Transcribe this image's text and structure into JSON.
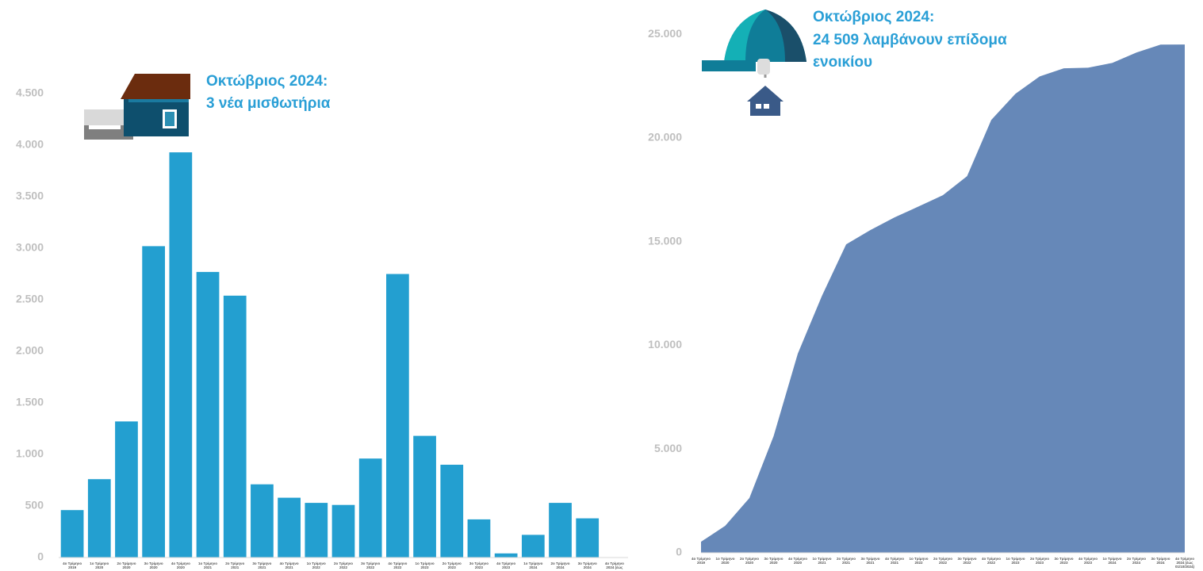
{
  "chart_data": [
    {
      "type": "bar",
      "color": "#239fd0",
      "annotations": [
        "Οκτώβριος 2024:",
        "3 νέα μισθωτήρια"
      ],
      "categories": [
        "4ο Τρίμηνο 2019",
        "1ο Τρίμηνο 2020",
        "2ο Τρίμηνο 2020",
        "3ο Τρίμηνο 2020",
        "4ο Τρίμηνο 2020",
        "1ο Τρίμηνο 2021",
        "2ο Τρίμηνο 2021",
        "3ο Τρίμηνο 2021",
        "4ο Τρίμηνο 2021",
        "1ο Τρίμηνο 2022",
        "2ο Τρίμηνο 2022",
        "3ο Τρίμηνο 2022",
        "4ο Τρίμηνο 2022",
        "1ο Τρίμηνο 2023",
        "2ο Τρίμηνο 2023",
        "3ο Τρίμηνο 2023",
        "4ο Τρίμηνο 2023",
        "1ο Τρίμηνο 2024",
        "2ο Τρίμηνο 2024",
        "3ο Τρίμηνο 2024",
        "4ο Τρίμηνο 2024 (έως"
      ],
      "values": [
        460,
        760,
        1320,
        3020,
        3930,
        2770,
        2540,
        710,
        580,
        530,
        510,
        960,
        2750,
        1180,
        900,
        370,
        40,
        220,
        530,
        380,
        3
      ],
      "ylim": [
        0,
        5000
      ],
      "yticks": [
        0,
        500,
        {
          "value": 1000,
          "label": "1.000"
        },
        {
          "value": 1500,
          "label": "1.500"
        },
        {
          "value": 2000,
          "label": "2.000"
        },
        {
          "value": 2500,
          "label": "2.500"
        },
        {
          "value": 3000,
          "label": "3.000"
        },
        {
          "value": 3500,
          "label": "3.500"
        },
        {
          "value": 4000,
          "label": "4.000"
        },
        {
          "value": 4500,
          "label": "4.500"
        }
      ]
    },
    {
      "type": "area",
      "color": "#6688b8",
      "annotations": [
        "Οκτώβριος 2024:",
        "24 509 λαμβάνουν επίδομα",
        "ενοικίου"
      ],
      "categories": [
        "4ο Τρίμηνο 2019",
        "1ο Τρίμηνο 2020",
        "2ο Τρίμηνο 2020",
        "3ο Τρίμηνο 2020",
        "4ο Τρίμηνο 2020",
        "1ο Τρίμηνο 2021",
        "2ο Τρίμηνο 2021",
        "3ο Τρίμηνο 2021",
        "4ο Τρίμηνο 2021",
        "1ο Τρίμηνο 2022",
        "2ο Τρίμηνο 2022",
        "3ο Τρίμηνο 2022",
        "4ο Τρίμηνο 2022",
        "1ο Τρίμηνο 2023",
        "2ο Τρίμηνο 2023",
        "3ο Τρίμηνο 2023",
        "4ο Τρίμηνο 2023",
        "1ο Τρίμηνο 2024",
        "2ο Τρίμηνο 2024",
        "3ο Τρίμηνο 2024",
        "4ο Τρίμηνο 2024 (έως 01/10/2024)"
      ],
      "values": [
        530,
        1300,
        2640,
        5620,
        9600,
        12390,
        14870,
        15560,
        16170,
        16700,
        17240,
        18160,
        20870,
        22130,
        22970,
        23360,
        23390,
        23620,
        24120,
        24500,
        24509
      ],
      "ylim": [
        0,
        26500
      ],
      "yticks": [
        0,
        {
          "value": 5000,
          "label": "5.000"
        },
        {
          "value": 10000,
          "label": "10.000"
        },
        {
          "value": 15000,
          "label": "15.000"
        },
        {
          "value": 20000,
          "label": "20.000"
        },
        {
          "value": 25000,
          "label": "25.000"
        }
      ]
    }
  ]
}
